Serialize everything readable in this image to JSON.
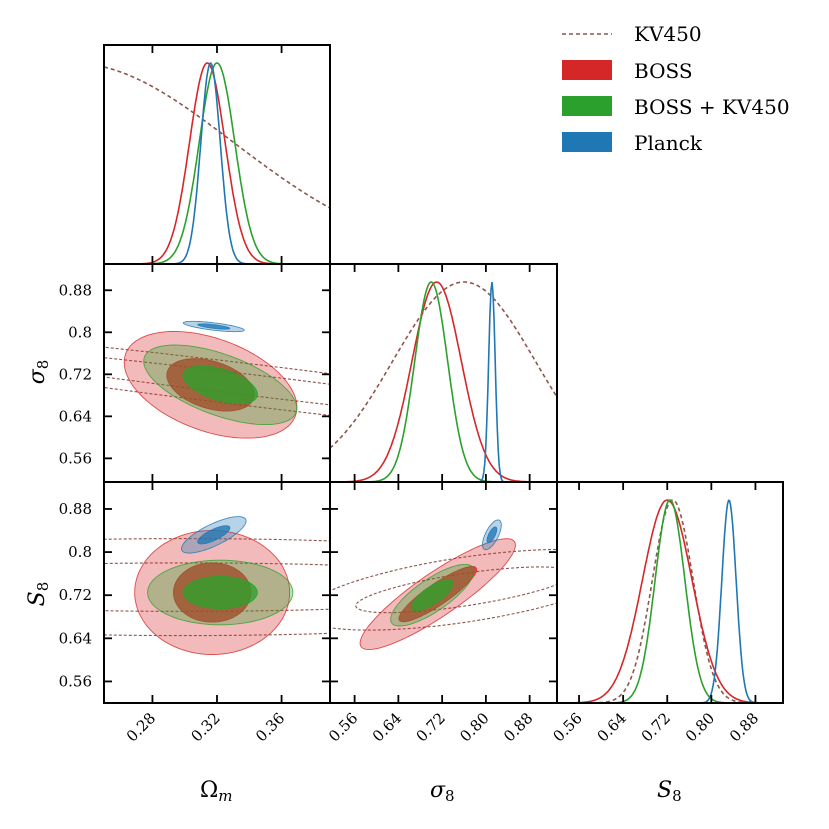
{
  "chart_data": {
    "type": "corner",
    "parameters": [
      "Ω_m",
      "σ_8",
      "S_8"
    ],
    "axis_labels": [
      {
        "main": "Ω",
        "sub": "m"
      },
      {
        "main": "σ",
        "sub": "8"
      },
      {
        "main": "S",
        "sub": "8"
      }
    ],
    "ranges": {
      "omega_m": [
        0.25,
        0.39
      ],
      "sigma8": [
        0.515,
        0.93
      ],
      "s8": [
        0.52,
        0.93
      ]
    },
    "ticks": {
      "omega_m": [
        0.28,
        0.32,
        0.36
      ],
      "sigma8": [
        0.56,
        0.64,
        0.72,
        0.8,
        0.88
      ],
      "s8": [
        0.56,
        0.64,
        0.72,
        0.8,
        0.88
      ]
    },
    "tick_labels": {
      "omega_m": [
        "0.28",
        "0.32",
        "0.36"
      ],
      "sigma8": [
        "0.56",
        "0.64",
        "0.72",
        "0.80",
        "0.88"
      ],
      "sigma8_y": [
        "0.56",
        "0.64",
        "0.72",
        "0.8",
        "0.88"
      ],
      "s8_x": [
        "0.56",
        "0.64",
        "0.72",
        "0.80",
        "0.88"
      ],
      "s8_y": [
        "0.56",
        "0.64",
        "0.72",
        "0.8",
        "0.88"
      ]
    },
    "legend": {
      "placement": "top-right",
      "entries": [
        {
          "label": "KV450",
          "style": "dashed",
          "color": "#8c564b"
        },
        {
          "label": "BOSS",
          "style": "filled",
          "color": "#d62728"
        },
        {
          "label": "BOSS + KV450",
          "style": "filled",
          "color": "#2ca02c"
        },
        {
          "label": "Planck",
          "style": "filled",
          "color": "#1f77b4"
        }
      ]
    },
    "series": [
      {
        "name": "KV450",
        "color": "#8c564b",
        "omega_m": {
          "peak": 0.23,
          "sigma": 0.1
        },
        "sigma8": {
          "peak": 0.76,
          "sigma": 0.13
        },
        "s8": {
          "peak": 0.73,
          "sigma": 0.037
        }
      },
      {
        "name": "BOSS",
        "color": "#d62728",
        "omega_m": {
          "peak": 0.314,
          "sigma": 0.011
        },
        "sigma8": {
          "peak": 0.71,
          "sigma": 0.045
        },
        "s8": {
          "peak": 0.72,
          "sigma": 0.045
        }
      },
      {
        "name": "BOSS + KV450",
        "color": "#2ca02c",
        "omega_m": {
          "peak": 0.32,
          "sigma": 0.011
        },
        "sigma8": {
          "peak": 0.7,
          "sigma": 0.03
        },
        "s8": {
          "peak": 0.725,
          "sigma": 0.027
        }
      },
      {
        "name": "Planck",
        "color": "#1f77b4",
        "omega_m": {
          "peak": 0.316,
          "sigma": 0.006
        },
        "sigma8": {
          "peak": 0.811,
          "sigma": 0.006
        },
        "s8": {
          "peak": 0.832,
          "sigma": 0.013
        }
      }
    ],
    "contours_2d": [
      {
        "panel": "omega_m-sigma8",
        "series": [
          {
            "name": "KV450",
            "center": [
              0.34,
              0.7
            ],
            "outer": {
              "a": 0.3,
              "b": 0.04,
              "angle": -0.12
            },
            "inner": {
              "a": 0.22,
              "b": 0.02,
              "angle": -0.12
            }
          },
          {
            "name": "BOSS",
            "center": [
              0.316,
              0.7
            ],
            "outer": {
              "a": 0.056,
              "b": 0.088,
              "angle": -0.35
            },
            "inner": {
              "a": 0.028,
              "b": 0.045,
              "angle": -0.3
            }
          },
          {
            "name": "BOSS + KV450",
            "center": [
              0.322,
              0.7
            ],
            "outer": {
              "a": 0.05,
              "b": 0.058,
              "angle": -0.35
            },
            "inner": {
              "a": 0.024,
              "b": 0.03,
              "angle": -0.3
            }
          },
          {
            "name": "Planck",
            "center": [
              0.318,
              0.811
            ],
            "outer": {
              "a": 0.019,
              "b": 0.007,
              "angle": -0.12
            },
            "inner": {
              "a": 0.01,
              "b": 0.0035,
              "angle": -0.12
            }
          }
        ]
      },
      {
        "panel": "omega_m-s8",
        "series": [
          {
            "name": "KV450",
            "center": [
              0.3,
              0.735
            ],
            "outer": {
              "a": 0.3,
              "b": 0.09,
              "angle": 0.0
            },
            "inner": {
              "a": 0.22,
              "b": 0.045,
              "angle": 0.0
            }
          },
          {
            "name": "BOSS",
            "center": [
              0.317,
              0.725
            ],
            "outer": {
              "a": 0.048,
              "b": 0.115,
              "angle": 0.0
            },
            "inner": {
              "a": 0.024,
              "b": 0.055,
              "angle": 0.0
            }
          },
          {
            "name": "BOSS + KV450",
            "center": [
              0.322,
              0.725
            ],
            "outer": {
              "a": 0.045,
              "b": 0.06,
              "angle": 0.0
            },
            "inner": {
              "a": 0.023,
              "b": 0.03,
              "angle": 0.0
            }
          },
          {
            "name": "Planck",
            "center": [
              0.318,
              0.832
            ],
            "outer": {
              "a": 0.022,
              "b": 0.02,
              "angle": 0.45
            },
            "inner": {
              "a": 0.011,
              "b": 0.01,
              "angle": 0.45
            }
          }
        ]
      },
      {
        "panel": "sigma8-s8",
        "series": [
          {
            "name": "KV450",
            "center": [
              0.76,
              0.73
            ],
            "outer": {
              "a": 0.3,
              "b": 0.06,
              "angle": 0.15
            },
            "inner": {
              "a": 0.2,
              "b": 0.03,
              "angle": 0.15
            }
          },
          {
            "name": "BOSS",
            "center": [
              0.712,
              0.722
            ],
            "outer": {
              "a": 0.17,
              "b": 0.04,
              "angle": 0.6
            },
            "inner": {
              "a": 0.085,
              "b": 0.02,
              "angle": 0.6
            }
          },
          {
            "name": "BOSS + KV450",
            "center": [
              0.702,
              0.72
            ],
            "outer": {
              "a": 0.09,
              "b": 0.03,
              "angle": 0.6
            },
            "inner": {
              "a": 0.045,
              "b": 0.016,
              "angle": 0.6
            }
          },
          {
            "name": "Planck",
            "center": [
              0.811,
              0.832
            ],
            "outer": {
              "a": 0.03,
              "b": 0.012,
              "angle": 1.1
            },
            "inner": {
              "a": 0.016,
              "b": 0.006,
              "angle": 1.1
            }
          }
        ]
      }
    ]
  }
}
